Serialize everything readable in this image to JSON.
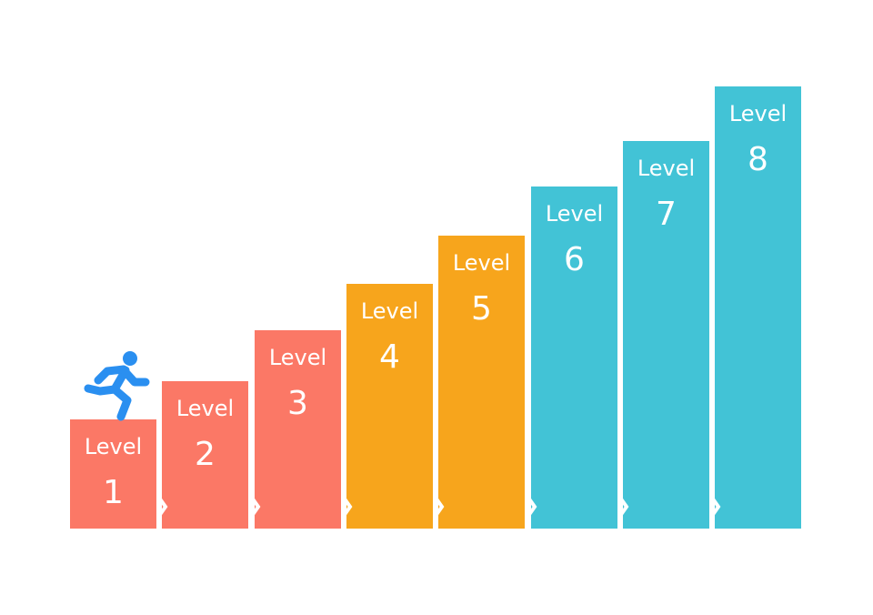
{
  "steps": [
    {
      "label": "Level",
      "number": 1
    },
    {
      "label": "Level",
      "number": 2
    },
    {
      "label": "Level",
      "number": 3
    },
    {
      "label": "Level",
      "number": 4
    },
    {
      "label": "Level",
      "number": 5
    },
    {
      "label": "Level",
      "number": 6
    },
    {
      "label": "Level",
      "number": 7
    },
    {
      "label": "Level",
      "number": 8
    }
  ]
}
